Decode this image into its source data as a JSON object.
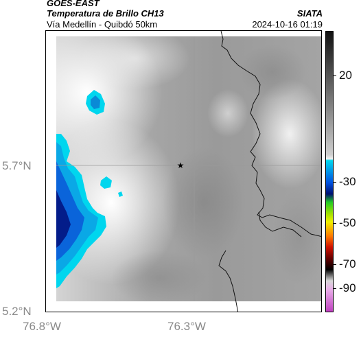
{
  "header": {
    "satellite": "GOES-EAST",
    "product": "Temperatura de Brillo CH13",
    "route": "Vía Medellín - Quibdó 50km",
    "agency": "SIATA",
    "datetime": "2024-10-16 01:19"
  },
  "map": {
    "marker": "star-marker",
    "lat_ticks": [
      "5.7°N",
      "5.2°N"
    ],
    "lon_ticks": [
      "76.8°W",
      "76.3°W"
    ]
  },
  "colorbar": {
    "labels": [
      "20",
      "-30",
      "-50",
      "-70",
      "-90"
    ],
    "colors": {
      "cyan": "#00d8ee",
      "blue": "#0050e0",
      "darkblue": "#001070",
      "green": "#22cc22",
      "yellow": "#f0f000",
      "orange": "#ff7a00",
      "red": "#d01000",
      "black": "#000000",
      "magenta": "#c040c0"
    }
  }
}
